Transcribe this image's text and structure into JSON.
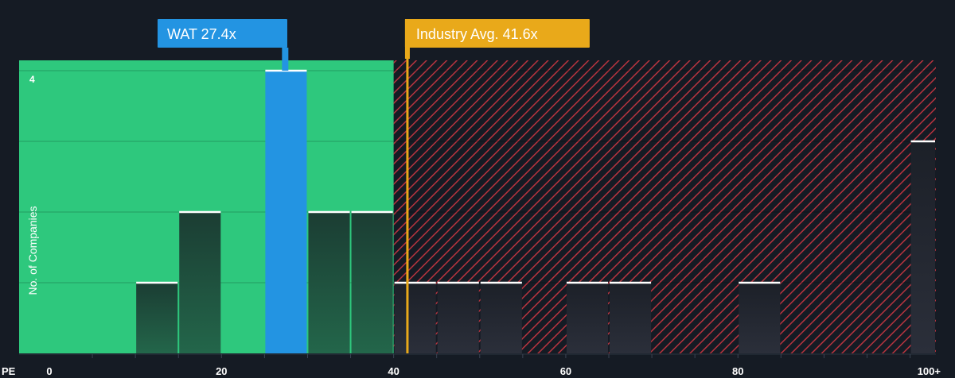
{
  "chart_data": {
    "type": "bar",
    "xlabel": "PE",
    "ylabel": "No. of Companies",
    "xlim": [
      0,
      103
    ],
    "ylim": [
      0,
      4
    ],
    "x_ticks": [
      {
        "value": 0,
        "label": "0"
      },
      {
        "value": 20,
        "label": "20"
      },
      {
        "value": 40,
        "label": "40"
      },
      {
        "value": 60,
        "label": "60"
      },
      {
        "value": 80,
        "label": "80"
      },
      {
        "value": 100,
        "label": "100+"
      }
    ],
    "y_top_label": "4",
    "bins": [
      {
        "x0": 10,
        "x1": 15,
        "count": 1
      },
      {
        "x0": 15,
        "x1": 20,
        "count": 2
      },
      {
        "x0": 25,
        "x1": 30,
        "count": 4,
        "highlight": true
      },
      {
        "x0": 30,
        "x1": 35,
        "count": 2
      },
      {
        "x0": 35,
        "x1": 40,
        "count": 2
      },
      {
        "x0": 40,
        "x1": 45,
        "count": 1
      },
      {
        "x0": 45,
        "x1": 50,
        "count": 1
      },
      {
        "x0": 50,
        "x1": 55,
        "count": 1
      },
      {
        "x0": 60,
        "x1": 65,
        "count": 1
      },
      {
        "x0": 65,
        "x1": 70,
        "count": 1
      },
      {
        "x0": 80,
        "x1": 85,
        "count": 1
      },
      {
        "x0": 100,
        "x1": 103,
        "count": 3
      }
    ],
    "company": {
      "label": "WAT 27.4x",
      "value": 27.4
    },
    "industry_avg": {
      "label": "Industry Avg. 41.6x",
      "value": 41.6
    },
    "fair_zone_max": 40,
    "colors": {
      "background": "#151b24",
      "fair_zone": "#2ec87d",
      "overvalued_hatch": "#b8343f",
      "highlight_bar": "#2394e2",
      "industry_line": "#e9a91a",
      "bar_top": "#ffffff"
    }
  }
}
